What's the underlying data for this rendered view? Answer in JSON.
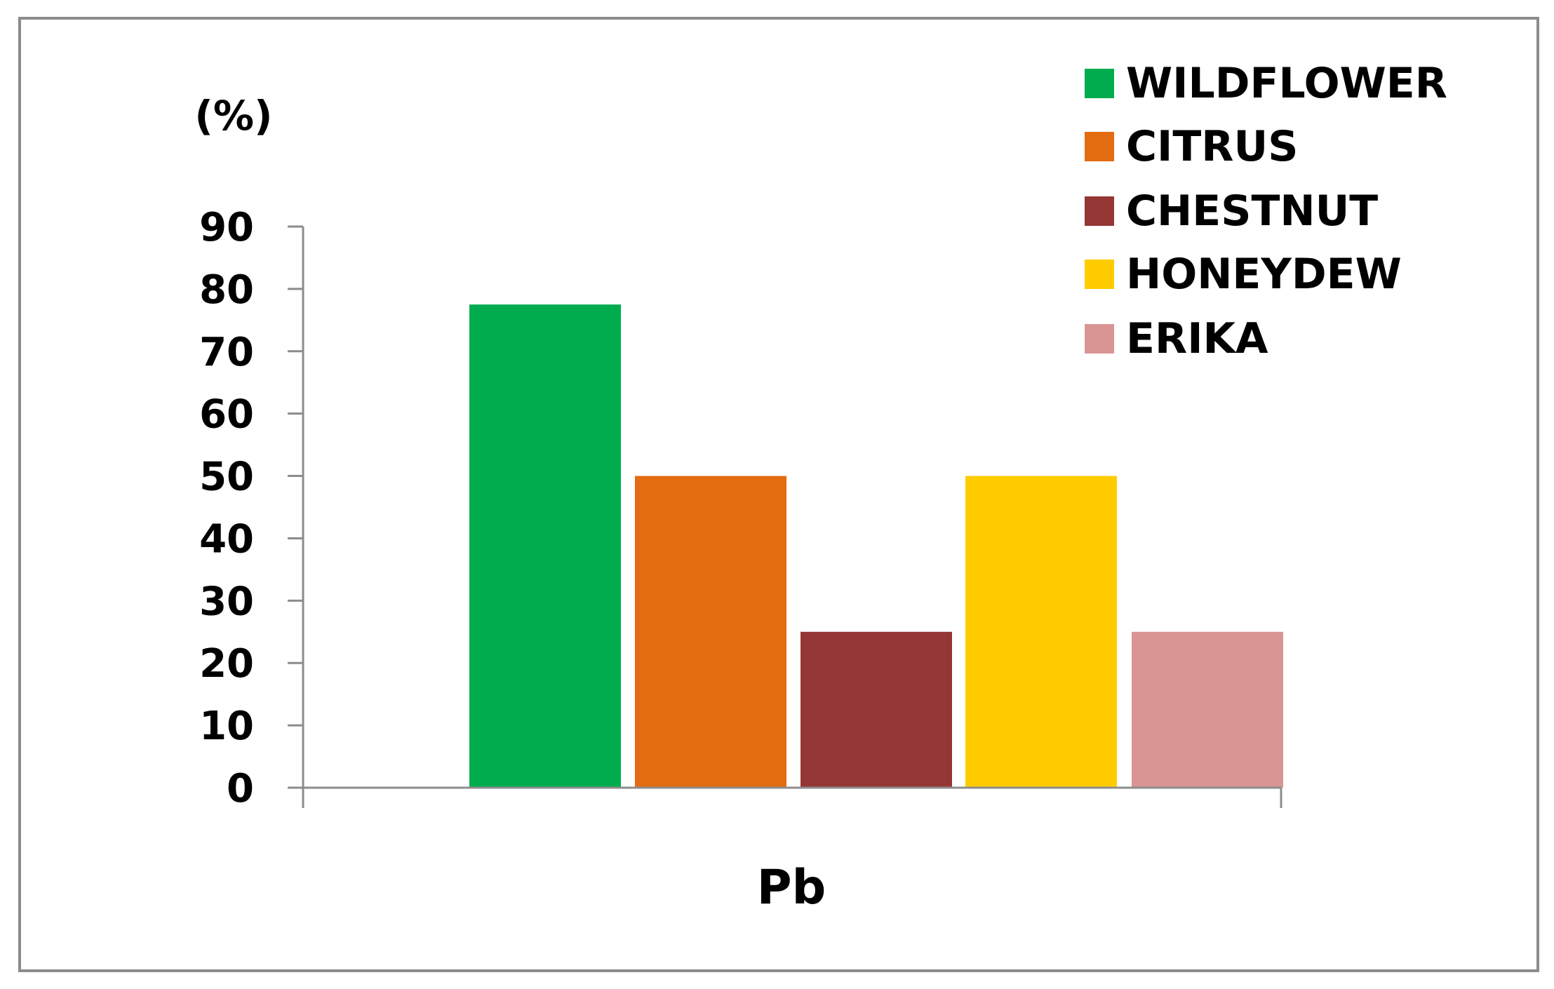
{
  "chart_data": {
    "type": "bar",
    "categories": [
      "Pb"
    ],
    "series": [
      {
        "name": "WILDFLOWER",
        "values": [
          77.5
        ],
        "color": "#00AC4E"
      },
      {
        "name": "CITRUS",
        "values": [
          50
        ],
        "color": "#E36B10"
      },
      {
        "name": "CHESTNUT",
        "values": [
          25
        ],
        "color": "#943634"
      },
      {
        "name": "HONEYDEW",
        "values": [
          50
        ],
        "color": "#FFCC00"
      },
      {
        "name": "ERIKA",
        "values": [
          25
        ],
        "color": "#D99594"
      }
    ],
    "title": "",
    "ylabel": "(%)",
    "xlabel": "",
    "ylim": [
      0,
      90
    ],
    "yticks": [
      "0",
      "10",
      "20",
      "30",
      "40",
      "50",
      "60",
      "70",
      "80",
      "90"
    ],
    "grid": false,
    "legend_position": "top-right"
  }
}
